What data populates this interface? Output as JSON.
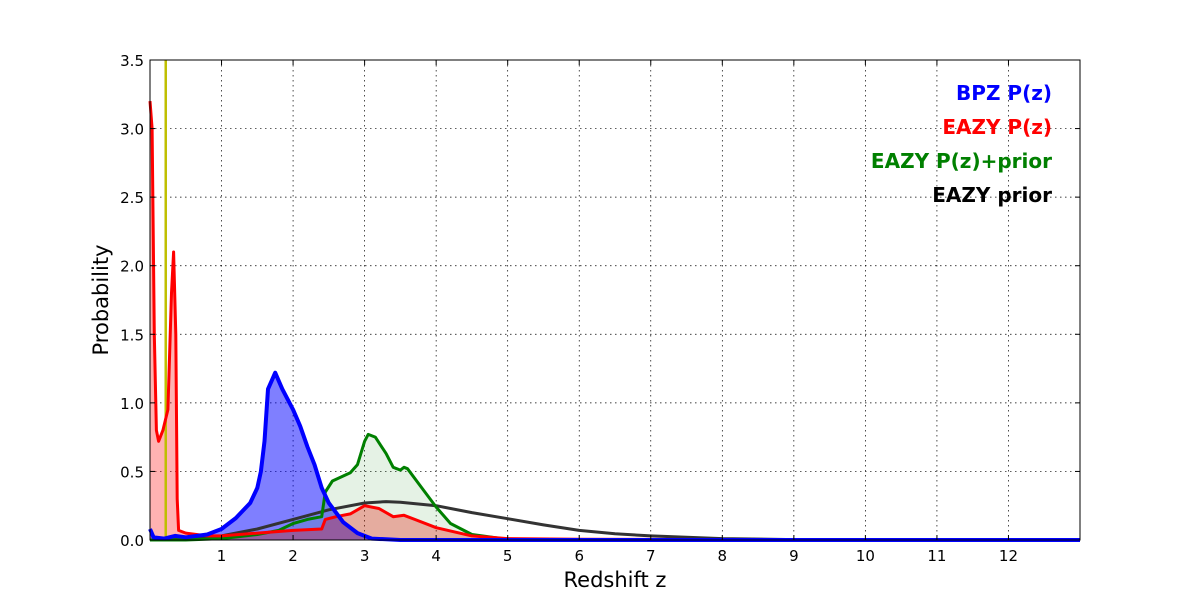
{
  "chart_data": {
    "type": "area",
    "title": "",
    "xlabel": "Redshift z",
    "ylabel": "Probability",
    "xlim": [
      0,
      13
    ],
    "ylim": [
      0,
      3.5
    ],
    "xticks": [
      1,
      2,
      3,
      4,
      5,
      6,
      7,
      8,
      9,
      10,
      11,
      12
    ],
    "xtick_labels": [
      "1",
      "2",
      "3",
      "4",
      "5",
      "6",
      "7",
      "8",
      "9",
      "10",
      "11",
      "12"
    ],
    "yticks": [
      0,
      0.5,
      1,
      1.5,
      2,
      2.5,
      3,
      3.5
    ],
    "ytick_labels": [
      "0.0",
      "0.5",
      "1.0",
      "1.5",
      "2.0",
      "2.5",
      "3.0",
      "3.5"
    ],
    "grid": true,
    "legend_position": "top-right",
    "vertical_line": {
      "x": 0.22,
      "color": "#bfbf00"
    },
    "series": [
      {
        "name": "BPZ P(z)",
        "color": "#0000ff",
        "fill": "rgba(0,0,255,0.5)",
        "x": [
          0,
          0.05,
          0.2,
          0.35,
          0.5,
          0.8,
          1.0,
          1.2,
          1.4,
          1.5,
          1.55,
          1.6,
          1.65,
          1.7,
          1.75,
          1.85,
          2.0,
          2.1,
          2.2,
          2.3,
          2.4,
          2.5,
          2.7,
          2.9,
          3.1,
          3.5,
          13
        ],
        "y": [
          0.08,
          0.02,
          0.01,
          0.03,
          0.02,
          0.04,
          0.08,
          0.16,
          0.27,
          0.38,
          0.5,
          0.72,
          1.1,
          1.16,
          1.22,
          1.1,
          0.95,
          0.83,
          0.68,
          0.55,
          0.38,
          0.27,
          0.13,
          0.05,
          0.01,
          0,
          0
        ]
      },
      {
        "name": "EAZY P(z)",
        "color": "#ff0000",
        "fill": "rgba(255,0,0,0.3)",
        "x": [
          0,
          0.03,
          0.06,
          0.09,
          0.12,
          0.18,
          0.25,
          0.3,
          0.33,
          0.36,
          0.38,
          0.4,
          0.5,
          0.8,
          1.0,
          1.5,
          2.0,
          2.4,
          2.45,
          2.6,
          2.8,
          3.0,
          3.2,
          3.4,
          3.55,
          3.7,
          4.0,
          4.5,
          5.0,
          6,
          11.8
        ],
        "y": [
          3.2,
          3.0,
          1.5,
          0.8,
          0.72,
          0.8,
          0.95,
          1.8,
          2.1,
          1.5,
          0.3,
          0.07,
          0.05,
          0.03,
          0.03,
          0.05,
          0.07,
          0.08,
          0.15,
          0.17,
          0.19,
          0.25,
          0.23,
          0.17,
          0.18,
          0.15,
          0.09,
          0.03,
          0.01,
          0.005,
          0
        ]
      },
      {
        "name": "EAZY P(z)+prior",
        "color": "#008000",
        "fill": "rgba(0,128,0,0.1)",
        "x": [
          0,
          0.5,
          1.0,
          1.5,
          1.8,
          2.0,
          2.2,
          2.4,
          2.45,
          2.55,
          2.8,
          2.9,
          3.0,
          3.05,
          3.15,
          3.3,
          3.4,
          3.5,
          3.55,
          3.6,
          3.8,
          4.0,
          4.2,
          4.5,
          5,
          6,
          11.8
        ],
        "y": [
          0,
          0,
          0.01,
          0.04,
          0.07,
          0.12,
          0.15,
          0.17,
          0.35,
          0.43,
          0.49,
          0.55,
          0.72,
          0.77,
          0.75,
          0.63,
          0.53,
          0.51,
          0.53,
          0.52,
          0.38,
          0.24,
          0.12,
          0.04,
          0.005,
          0,
          0
        ]
      },
      {
        "name": "EAZY prior",
        "color": "#333333",
        "fill": "none",
        "x": [
          0,
          0.5,
          1,
          1.5,
          2,
          2.5,
          3,
          3.3,
          3.5,
          4,
          4.5,
          5,
          5.5,
          6,
          6.5,
          7,
          8,
          9,
          10,
          11,
          11.8
        ],
        "y": [
          0,
          0.005,
          0.03,
          0.08,
          0.15,
          0.22,
          0.27,
          0.28,
          0.275,
          0.25,
          0.2,
          0.155,
          0.11,
          0.07,
          0.045,
          0.03,
          0.01,
          0.003,
          0.001,
          0,
          0
        ]
      }
    ]
  }
}
